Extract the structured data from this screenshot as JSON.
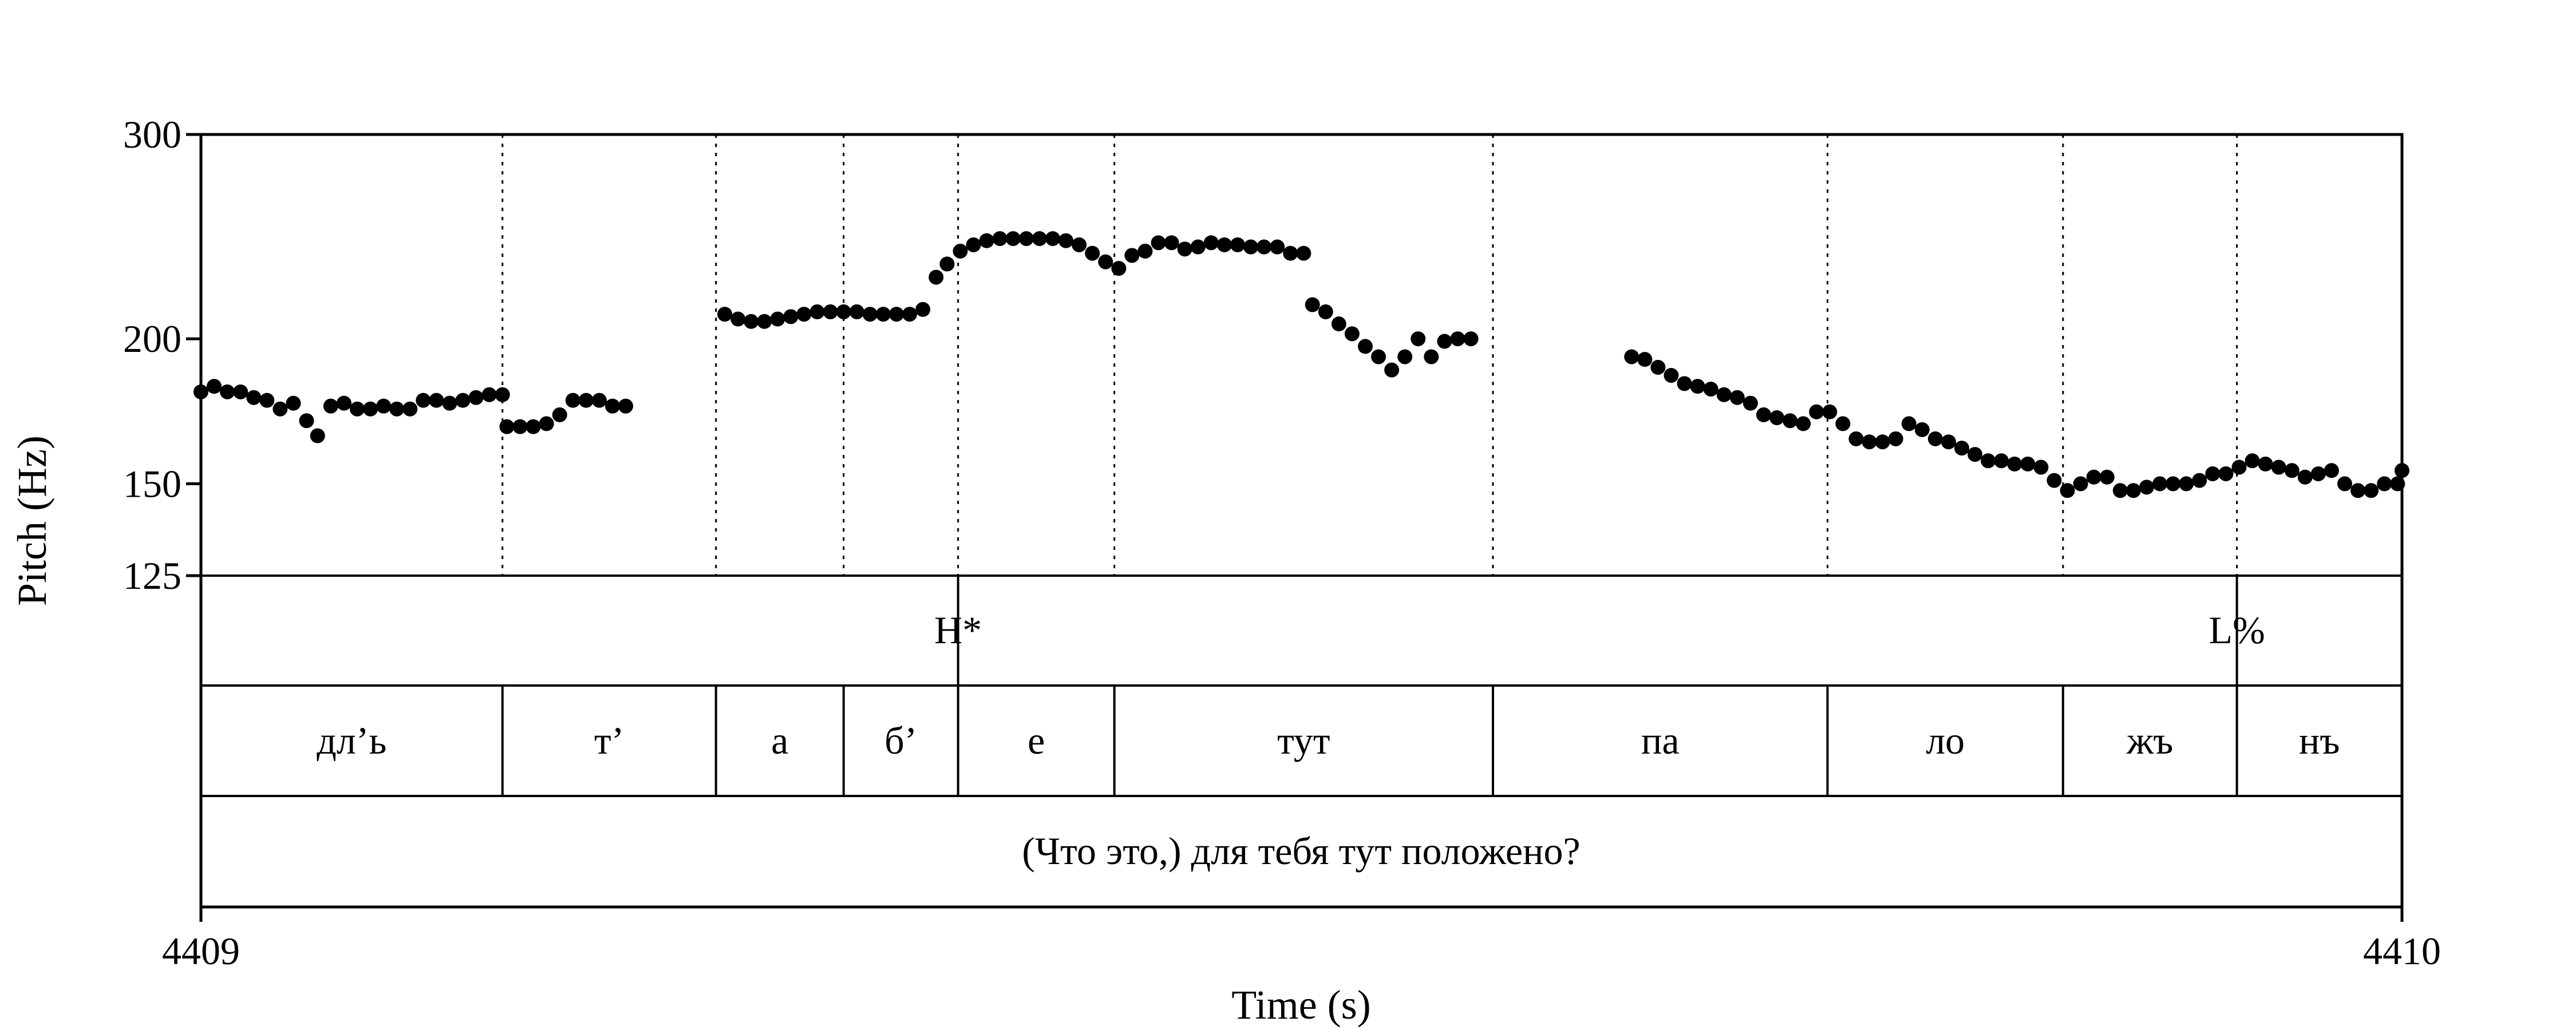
{
  "chart_data": {
    "type": "scatter",
    "title": "",
    "xlabel": "Time (s)",
    "ylabel": "Pitch (Hz)",
    "x_ticks": [
      "4409",
      "4410"
    ],
    "xlim": [
      4409,
      4410
    ],
    "ylim": [
      125,
      300
    ],
    "y_scale": "log",
    "y_ticks": [
      {
        "value": 300,
        "label": "300"
      },
      {
        "value": 200,
        "label": "200"
      },
      {
        "value": 150,
        "label": "150"
      },
      {
        "value": 125,
        "label": "125"
      }
    ],
    "boundaries": [
      4409.137,
      4409.234,
      4409.292,
      4409.344,
      4409.415,
      4409.587,
      4409.739,
      4409.846,
      4409.925
    ],
    "tones": [
      {
        "label": "H*",
        "time": 4409.344
      },
      {
        "label": "L%",
        "time": 4409.925
      }
    ],
    "syllables": [
      {
        "label": "дл’ь",
        "start": 4409.0,
        "end": 4409.137
      },
      {
        "label": "т’",
        "start": 4409.137,
        "end": 4409.234
      },
      {
        "label": "а",
        "start": 4409.234,
        "end": 4409.292
      },
      {
        "label": "б’",
        "start": 4409.292,
        "end": 4409.344
      },
      {
        "label": "е",
        "start": 4409.344,
        "end": 4409.415
      },
      {
        "label": "тут",
        "start": 4409.415,
        "end": 4409.587
      },
      {
        "label": "па",
        "start": 4409.587,
        "end": 4409.739
      },
      {
        "label": "ло",
        "start": 4409.739,
        "end": 4409.846
      },
      {
        "label": "жъ",
        "start": 4409.846,
        "end": 4409.925
      },
      {
        "label": "нъ",
        "start": 4409.925,
        "end": 4410.0
      }
    ],
    "sentence": "(Что это,) для тебя тут положено?",
    "series": [
      {
        "points": [
          [
            4409.0,
            180
          ],
          [
            4409.006,
            182
          ],
          [
            4409.012,
            180
          ],
          [
            4409.018,
            180
          ],
          [
            4409.024,
            178
          ],
          [
            4409.03,
            177
          ],
          [
            4409.036,
            174
          ],
          [
            4409.042,
            176
          ],
          [
            4409.048,
            170
          ],
          [
            4409.053,
            165
          ],
          [
            4409.059,
            175
          ],
          [
            4409.065,
            176
          ],
          [
            4409.071,
            174
          ],
          [
            4409.077,
            174
          ],
          [
            4409.083,
            175
          ],
          [
            4409.089,
            174
          ],
          [
            4409.095,
            174
          ],
          [
            4409.101,
            177
          ],
          [
            4409.107,
            177
          ],
          [
            4409.113,
            176
          ],
          [
            4409.119,
            177
          ],
          [
            4409.125,
            178
          ],
          [
            4409.131,
            179
          ],
          [
            4409.137,
            179
          ],
          [
            4409.139,
            168
          ],
          [
            4409.145,
            168
          ],
          [
            4409.151,
            168
          ],
          [
            4409.157,
            169
          ],
          [
            4409.163,
            172
          ],
          [
            4409.169,
            177
          ],
          [
            4409.175,
            177
          ],
          [
            4409.181,
            177
          ],
          [
            4409.187,
            175
          ],
          [
            4409.193,
            175
          ],
          [
            4409.238,
            210
          ],
          [
            4409.244,
            208
          ],
          [
            4409.25,
            207
          ],
          [
            4409.256,
            207
          ],
          [
            4409.262,
            208
          ],
          [
            4409.268,
            209
          ],
          [
            4409.274,
            210
          ],
          [
            4409.28,
            211
          ],
          [
            4409.286,
            211
          ],
          [
            4409.292,
            211
          ],
          [
            4409.298,
            211
          ],
          [
            4409.304,
            210
          ],
          [
            4409.31,
            210
          ],
          [
            4409.316,
            210
          ],
          [
            4409.322,
            210
          ],
          [
            4409.328,
            212
          ],
          [
            4409.334,
            226
          ],
          [
            4409.339,
            232
          ],
          [
            4409.345,
            238
          ],
          [
            4409.351,
            241
          ],
          [
            4409.357,
            243
          ],
          [
            4409.363,
            244
          ],
          [
            4409.369,
            244
          ],
          [
            4409.375,
            244
          ],
          [
            4409.381,
            244
          ],
          [
            4409.387,
            244
          ],
          [
            4409.393,
            243
          ],
          [
            4409.399,
            241
          ],
          [
            4409.405,
            237
          ],
          [
            4409.411,
            233
          ],
          [
            4409.417,
            230
          ],
          [
            4409.423,
            236
          ],
          [
            4409.429,
            238
          ],
          [
            4409.435,
            242
          ],
          [
            4409.441,
            242
          ],
          [
            4409.447,
            239
          ],
          [
            4409.453,
            240
          ],
          [
            4409.459,
            242
          ],
          [
            4409.465,
            241
          ],
          [
            4409.471,
            241
          ],
          [
            4409.477,
            240
          ],
          [
            4409.483,
            240
          ],
          [
            4409.489,
            240
          ],
          [
            4409.495,
            237
          ],
          [
            4409.501,
            237
          ],
          [
            4409.505,
            214
          ],
          [
            4409.511,
            211
          ],
          [
            4409.517,
            206
          ],
          [
            4409.523,
            202
          ],
          [
            4409.529,
            197
          ],
          [
            4409.535,
            193
          ],
          [
            4409.541,
            188
          ],
          [
            4409.547,
            193
          ],
          [
            4409.553,
            200
          ],
          [
            4409.559,
            193
          ],
          [
            4409.565,
            199
          ],
          [
            4409.571,
            200
          ],
          [
            4409.577,
            200
          ],
          [
            4409.65,
            193
          ],
          [
            4409.656,
            192
          ],
          [
            4409.662,
            189
          ],
          [
            4409.668,
            186
          ],
          [
            4409.674,
            183
          ],
          [
            4409.68,
            182
          ],
          [
            4409.686,
            181
          ],
          [
            4409.692,
            179
          ],
          [
            4409.698,
            178
          ],
          [
            4409.704,
            176
          ],
          [
            4409.71,
            172
          ],
          [
            4409.716,
            171
          ],
          [
            4409.722,
            170
          ],
          [
            4409.728,
            169
          ],
          [
            4409.734,
            173
          ],
          [
            4409.74,
            173
          ],
          [
            4409.746,
            169
          ],
          [
            4409.752,
            164
          ],
          [
            4409.758,
            163
          ],
          [
            4409.764,
            163
          ],
          [
            4409.77,
            164
          ],
          [
            4409.776,
            169
          ],
          [
            4409.782,
            167
          ],
          [
            4409.788,
            164
          ],
          [
            4409.794,
            163
          ],
          [
            4409.8,
            161
          ],
          [
            4409.806,
            159
          ],
          [
            4409.812,
            157
          ],
          [
            4409.818,
            157
          ],
          [
            4409.824,
            156
          ],
          [
            4409.83,
            156
          ],
          [
            4409.836,
            155
          ],
          [
            4409.842,
            151
          ],
          [
            4409.848,
            148
          ],
          [
            4409.854,
            150
          ],
          [
            4409.86,
            152
          ],
          [
            4409.866,
            152
          ],
          [
            4409.872,
            148
          ],
          [
            4409.878,
            148
          ],
          [
            4409.884,
            149
          ],
          [
            4409.89,
            150
          ],
          [
            4409.896,
            150
          ],
          [
            4409.902,
            150
          ],
          [
            4409.908,
            151
          ],
          [
            4409.914,
            153
          ],
          [
            4409.92,
            153
          ],
          [
            4409.926,
            155
          ],
          [
            4409.932,
            157
          ],
          [
            4409.938,
            156
          ],
          [
            4409.944,
            155
          ],
          [
            4409.95,
            154
          ],
          [
            4409.956,
            152
          ],
          [
            4409.962,
            153
          ],
          [
            4409.968,
            154
          ],
          [
            4409.974,
            150
          ],
          [
            4409.98,
            148
          ],
          [
            4409.986,
            148
          ],
          [
            4409.992,
            150
          ],
          [
            4409.998,
            150
          ],
          [
            4410.0,
            154
          ]
        ]
      }
    ]
  }
}
